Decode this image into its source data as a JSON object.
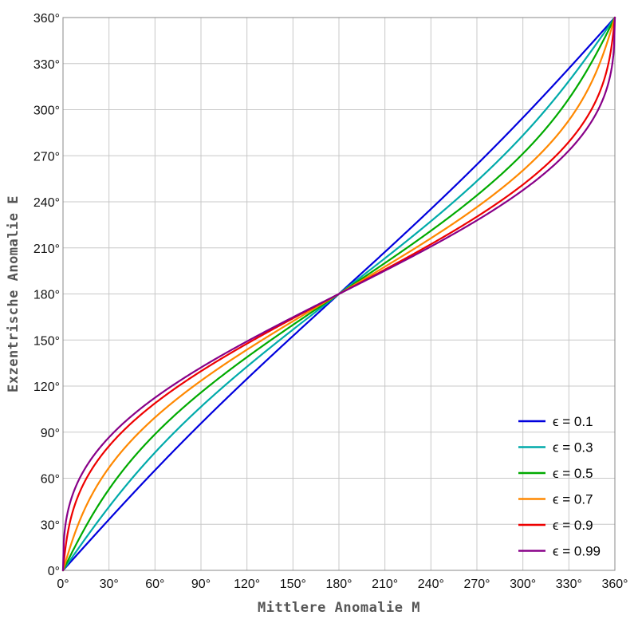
{
  "chart_data": {
    "type": "line",
    "title": "",
    "xlabel": "Mittlere Anomalie M",
    "ylabel": "Exzentrische Anomalie E",
    "xlim": [
      0,
      360
    ],
    "ylim": [
      0,
      360
    ],
    "x_ticks": [
      "0°",
      "30°",
      "60°",
      "90°",
      "120°",
      "150°",
      "180°",
      "210°",
      "240°",
      "270°",
      "300°",
      "330°",
      "360°"
    ],
    "y_ticks": [
      "0°",
      "30°",
      "60°",
      "90°",
      "120°",
      "150°",
      "180°",
      "210°",
      "240°",
      "270°",
      "300°",
      "330°",
      "360°"
    ],
    "grid": true,
    "legend_position": "bottom-right",
    "series": [
      {
        "name": "ϵ = 0.1",
        "eccentricity": 0.1,
        "color": "#0000dd"
      },
      {
        "name": "ϵ = 0.3",
        "eccentricity": 0.3,
        "color": "#00aaaa"
      },
      {
        "name": "ϵ = 0.5",
        "eccentricity": 0.5,
        "color": "#00aa00"
      },
      {
        "name": "ϵ = 0.7",
        "eccentricity": 0.7,
        "color": "#ff8800"
      },
      {
        "name": "ϵ = 0.9",
        "eccentricity": 0.9,
        "color": "#ee0000"
      },
      {
        "name": "ϵ = 0.99",
        "eccentricity": 0.99,
        "color": "#880088"
      }
    ]
  }
}
